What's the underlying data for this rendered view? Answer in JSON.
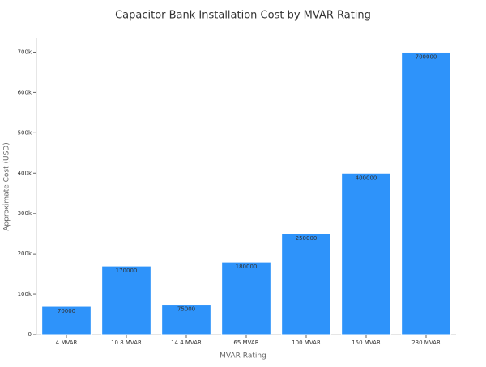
{
  "chart_data": {
    "type": "bar",
    "title": "Capacitor Bank Installation Cost by MVAR Rating",
    "x_label": "MVAR Rating",
    "y_label": "Approximate Cost (USD)",
    "categories": [
      "4 MVAR",
      "10.8 MVAR",
      "14.4 MVAR",
      "65 MVAR",
      "100 MVAR",
      "150 MVAR",
      "230 MVAR"
    ],
    "values": [
      70000,
      170000,
      75000,
      180000,
      250000,
      400000,
      700000
    ],
    "color": "#2e93fa",
    "ylim": [
      0,
      735000
    ],
    "yticks": [
      0,
      {
        "value": 100000,
        "label": "100k"
      },
      {
        "value": 200000,
        "label": "200k"
      },
      {
        "value": 300000,
        "label": "300k"
      },
      {
        "value": 400000,
        "label": "400k"
      },
      {
        "value": 500000,
        "label": "500k"
      },
      {
        "value": 600000,
        "label": "600k"
      },
      {
        "value": 700000,
        "label": "700k"
      }
    ],
    "grid": false
  }
}
